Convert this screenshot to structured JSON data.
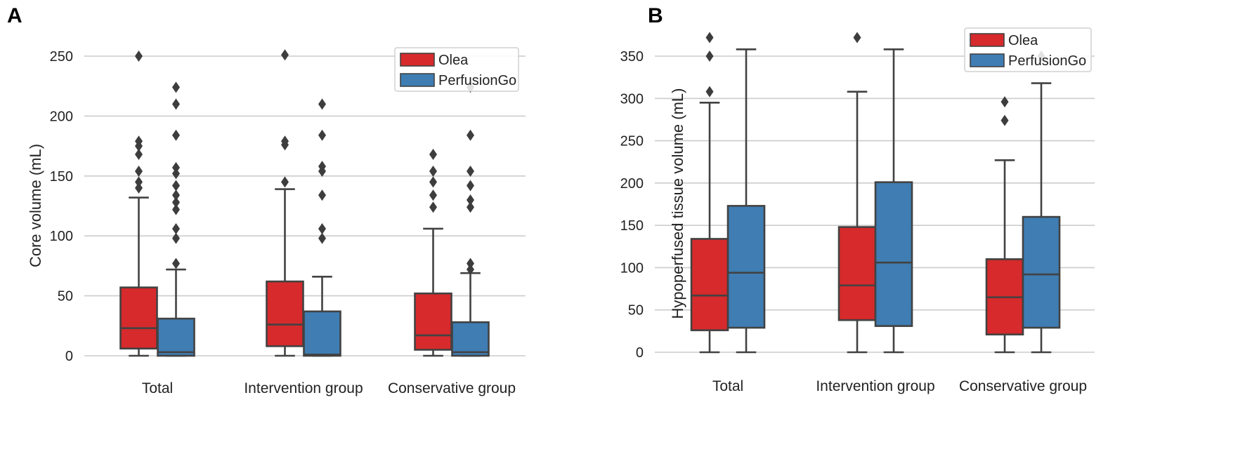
{
  "chart_data": [
    {
      "type": "box",
      "panel": "A",
      "ylabel": "Core volume (mL)",
      "ylim": [
        0,
        250
      ],
      "yticks": [
        0,
        50,
        100,
        150,
        200,
        250
      ],
      "categories": [
        "Total",
        "Intervention group",
        "Conservative group"
      ],
      "legend": {
        "placement": "top-right",
        "entries": [
          "Olea",
          "PerfusionGo"
        ]
      },
      "series": [
        {
          "name": "Olea",
          "color": "#d62a2c",
          "boxes": [
            {
              "whislo": 0,
              "q1": 6,
              "med": 23,
              "q3": 57,
              "whishi": 132,
              "fliers": [
                140,
                145,
                154,
                168,
                175,
                179,
                250
              ]
            },
            {
              "whislo": 0,
              "q1": 8,
              "med": 26,
              "q3": 62,
              "whishi": 139,
              "fliers": [
                145,
                176,
                179,
                251
              ]
            },
            {
              "whislo": 0,
              "q1": 5,
              "med": 17,
              "q3": 52,
              "whishi": 106,
              "fliers": [
                124,
                134,
                145,
                154,
                168
              ]
            }
          ]
        },
        {
          "name": "PerfusionGo",
          "color": "#3f7db3",
          "boxes": [
            {
              "whislo": 0,
              "q1": 0,
              "med": 3,
              "q3": 31,
              "whishi": 72,
              "fliers": [
                77,
                98,
                106,
                122,
                128,
                134,
                142,
                152,
                157,
                184,
                210,
                224
              ]
            },
            {
              "whislo": 0,
              "q1": 0,
              "med": 1,
              "q3": 37,
              "whishi": 66,
              "fliers": [
                98,
                106,
                134,
                154,
                158,
                184,
                210
              ]
            },
            {
              "whislo": 0,
              "q1": 0,
              "med": 3,
              "q3": 28,
              "whishi": 69,
              "fliers": [
                72,
                77,
                124,
                130,
                142,
                154,
                184,
                224
              ]
            }
          ]
        }
      ]
    },
    {
      "type": "box",
      "panel": "B",
      "ylabel": "Hypoperfused tissue volume (mL)",
      "ylim": [
        0,
        350
      ],
      "yticks": [
        0,
        50,
        100,
        150,
        200,
        250,
        300,
        350
      ],
      "categories": [
        "Total",
        "Intervention group",
        "Conservative group"
      ],
      "legend": {
        "placement": "top-right",
        "entries": [
          "Olea",
          "PerfusionGo"
        ]
      },
      "series": [
        {
          "name": "Olea",
          "color": "#d62a2c",
          "boxes": [
            {
              "whislo": 0,
              "q1": 26,
              "med": 67,
              "q3": 134,
              "whishi": 295,
              "fliers": [
                308,
                350,
                372
              ]
            },
            {
              "whislo": 0,
              "q1": 38,
              "med": 79,
              "q3": 148,
              "whishi": 308,
              "fliers": [
                372
              ]
            },
            {
              "whislo": 0,
              "q1": 21,
              "med": 65,
              "q3": 110,
              "whishi": 227,
              "fliers": [
                274,
                296
              ]
            }
          ]
        },
        {
          "name": "PerfusionGo",
          "color": "#3f7db3",
          "boxes": [
            {
              "whislo": 0,
              "q1": 29,
              "med": 94,
              "q3": 173,
              "whishi": 358,
              "fliers": []
            },
            {
              "whislo": 0,
              "q1": 31,
              "med": 106,
              "q3": 201,
              "whishi": 358,
              "fliers": []
            },
            {
              "whislo": 0,
              "q1": 29,
              "med": 92,
              "q3": 160,
              "whishi": 318,
              "fliers": [
                350
              ]
            }
          ]
        }
      ]
    }
  ]
}
